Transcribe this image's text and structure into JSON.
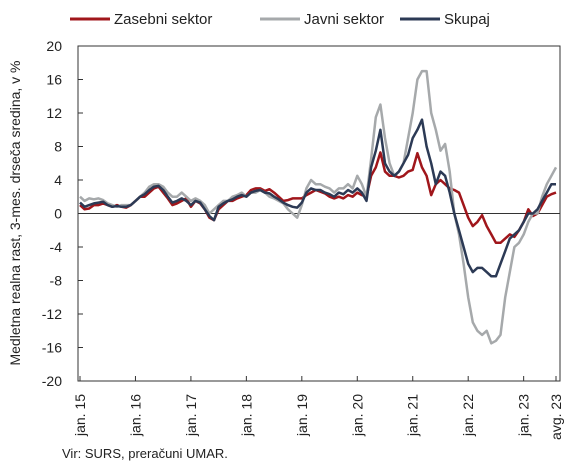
{
  "chart_data": {
    "type": "line",
    "y_label": "Medletna realna rast, 3-mes. drseča sredina, v %",
    "source": "Vir: SURS, preračuni UMAR.",
    "categories": [
      "jan. 15",
      null,
      null,
      null,
      null,
      null,
      null,
      null,
      null,
      null,
      null,
      null,
      "jan. 16",
      null,
      null,
      null,
      null,
      null,
      null,
      null,
      null,
      null,
      null,
      null,
      "jan. 17",
      null,
      null,
      null,
      null,
      null,
      null,
      null,
      null,
      null,
      null,
      null,
      "jan. 18",
      null,
      null,
      null,
      null,
      null,
      null,
      null,
      null,
      null,
      null,
      null,
      "jan. 19",
      null,
      null,
      null,
      null,
      null,
      null,
      null,
      null,
      null,
      null,
      null,
      "jan. 20",
      null,
      null,
      null,
      null,
      null,
      null,
      null,
      null,
      null,
      null,
      null,
      "jan. 21",
      null,
      null,
      null,
      null,
      null,
      null,
      null,
      null,
      null,
      null,
      null,
      "jan. 22",
      null,
      null,
      null,
      null,
      null,
      null,
      null,
      null,
      null,
      null,
      null,
      "jan. 23",
      null,
      null,
      null,
      null,
      null,
      null,
      "avg. 23"
    ],
    "series": [
      {
        "name": "Zasebni sektor",
        "color": "#a0161b",
        "values": [
          1.0,
          0.5,
          0.6,
          1.0,
          1.0,
          1.2,
          1.0,
          0.8,
          1.0,
          0.8,
          0.7,
          1.0,
          1.5,
          2.0,
          2.0,
          2.5,
          3.0,
          3.2,
          2.5,
          1.8,
          1.0,
          1.2,
          1.5,
          1.8,
          0.8,
          1.5,
          1.2,
          0.5,
          -0.5,
          -0.8,
          0.5,
          1.0,
          1.5,
          1.5,
          1.8,
          2.0,
          2.2,
          2.8,
          3.0,
          3.0,
          2.7,
          2.9,
          2.5,
          2.0,
          1.5,
          1.6,
          1.8,
          1.8,
          1.8,
          2.2,
          2.5,
          2.8,
          2.6,
          2.4,
          2.0,
          1.8,
          2.0,
          1.8,
          2.2,
          2.0,
          2.5,
          2.2,
          2.0,
          4.5,
          5.5,
          7.3,
          5.0,
          4.5,
          4.5,
          4.3,
          4.5,
          5.0,
          5.2,
          7.2,
          5.5,
          4.5,
          2.2,
          3.5,
          4.0,
          3.5,
          3.0,
          2.8,
          2.5,
          1.0,
          -0.5,
          -1.5,
          -1.0,
          -0.2,
          -1.5,
          -2.5,
          -3.5,
          -3.5,
          -3.0,
          -2.5,
          -2.8,
          -2.0,
          -1.0,
          0.5,
          -0.3,
          0.0,
          1.0,
          2.0,
          2.3,
          2.5
        ]
      },
      {
        "name": "Javni sektor",
        "color": "#a6a9ab",
        "values": [
          2.0,
          1.5,
          1.8,
          1.7,
          1.8,
          1.6,
          1.2,
          1.0,
          0.8,
          1.0,
          1.0,
          1.0,
          1.5,
          2.0,
          2.5,
          3.2,
          3.5,
          3.5,
          3.2,
          2.5,
          2.0,
          2.0,
          2.5,
          2.0,
          1.5,
          1.8,
          1.5,
          1.0,
          0.0,
          0.5,
          1.0,
          1.5,
          1.5,
          2.0,
          2.2,
          2.5,
          2.0,
          2.5,
          2.5,
          2.8,
          2.5,
          2.0,
          1.8,
          1.5,
          1.2,
          0.5,
          0.0,
          -0.5,
          1.0,
          3.0,
          4.0,
          3.5,
          3.5,
          3.2,
          3.0,
          2.5,
          3.0,
          3.0,
          3.5,
          3.0,
          4.5,
          3.5,
          2.0,
          6.5,
          11.5,
          13.0,
          9.0,
          6.0,
          4.5,
          5.0,
          6.0,
          9.0,
          12.0,
          16.0,
          17.0,
          17.0,
          12.0,
          10.0,
          7.5,
          8.3,
          5.0,
          0.0,
          -2.5,
          -6.0,
          -10.0,
          -13.0,
          -14.0,
          -14.5,
          -14.0,
          -15.5,
          -15.2,
          -14.5,
          -10.0,
          -7.0,
          -4.0,
          -3.5,
          -2.5,
          -1.0,
          0.0,
          0.0,
          2.0,
          3.5,
          4.5,
          5.5
        ]
      },
      {
        "name": "Skupaj",
        "color": "#2c3a55",
        "values": [
          1.3,
          0.8,
          1.0,
          1.2,
          1.3,
          1.4,
          1.0,
          0.8,
          0.9,
          0.8,
          0.8,
          1.0,
          1.5,
          2.0,
          2.3,
          2.8,
          3.2,
          3.3,
          2.8,
          2.0,
          1.3,
          1.5,
          1.8,
          1.5,
          1.0,
          1.5,
          1.3,
          0.5,
          -0.3,
          -0.8,
          0.8,
          1.2,
          1.5,
          1.7,
          2.0,
          2.2,
          2.0,
          2.5,
          2.7,
          2.8,
          2.5,
          2.4,
          2.0,
          1.7,
          1.3,
          1.0,
          0.8,
          0.7,
          1.3,
          2.5,
          3.0,
          2.8,
          2.8,
          2.5,
          2.3,
          2.0,
          2.5,
          2.3,
          2.8,
          2.5,
          3.0,
          2.5,
          1.5,
          5.5,
          7.5,
          10.0,
          6.0,
          5.0,
          4.5,
          5.0,
          6.0,
          7.0,
          9.0,
          10.0,
          11.2,
          8.0,
          6.0,
          3.5,
          5.0,
          4.5,
          2.5,
          0.0,
          -2.0,
          -4.0,
          -6.0,
          -7.0,
          -6.5,
          -6.5,
          -7.0,
          -7.5,
          -7.5,
          -6.0,
          -4.5,
          -3.0,
          -2.5,
          -2.0,
          -1.0,
          0.0,
          0.0,
          0.5,
          1.5,
          2.5,
          3.5,
          3.5
        ]
      }
    ],
    "ylim": [
      -20,
      20
    ],
    "yticks": [
      -20,
      -16,
      -12,
      -8,
      -4,
      0,
      4,
      8,
      12,
      16,
      20
    ],
    "legend": "top"
  }
}
